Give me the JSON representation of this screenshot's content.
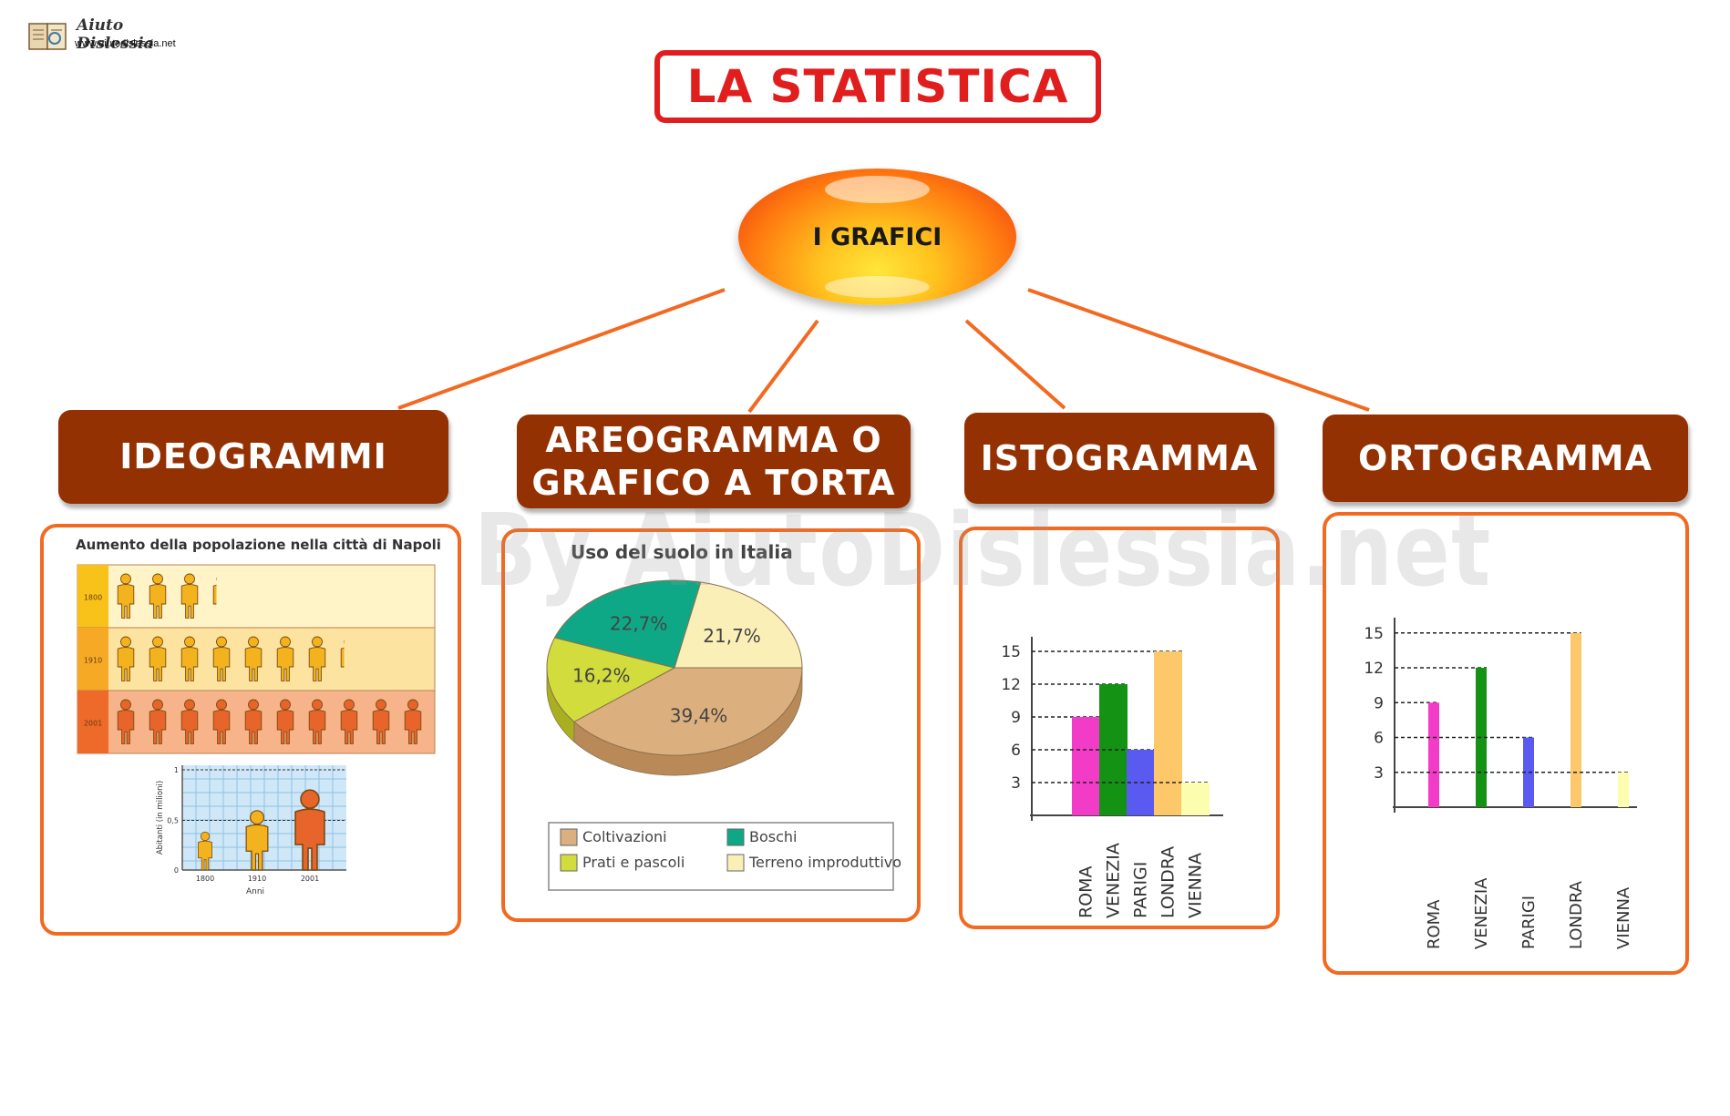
{
  "logo": {
    "name": "Aiuto Dislessia",
    "url": "www.aiutodislessia.net"
  },
  "title": "LA STATISTICA",
  "center": "I GRAFICI",
  "watermark": "By AiutoDislessia.net",
  "colors": {
    "title_red": "#e11e1e",
    "box_brown": "#943103",
    "connector_orange": "#f26a21"
  },
  "categories": [
    {
      "label": "IDEOGRAMMI"
    },
    {
      "label_line1": "AREOGRAMMA O",
      "label_line2": "GRAFICO A TORTA"
    },
    {
      "label": "ISTOGRAMMA"
    },
    {
      "label": "ORTOGRAMMA"
    }
  ],
  "ideogram": {
    "title": "Aumento della popolazione nella città di Napoli",
    "rows": [
      {
        "year": "1800",
        "icons": 3.25
      },
      {
        "year": "1910",
        "icons": 7.25
      },
      {
        "year": "2001",
        "icons": 10
      }
    ],
    "small_chart": {
      "ylabel": "Abitanti (in milioni)",
      "yticks": [
        "1",
        "0,5",
        "0"
      ],
      "categories": [
        "1800",
        "1910",
        "2001"
      ],
      "xlabel": "Anni"
    }
  },
  "chart_data": [
    {
      "type": "pie",
      "title": "Uso del suolo in Italia",
      "slices": [
        {
          "label": "Coltivazioni",
          "value": 39.4,
          "text": "39,4%",
          "color": "#dcaf7e"
        },
        {
          "label": "Prati e pascoli",
          "value": 16.2,
          "text": "16,2%",
          "color": "#d2dc3c"
        },
        {
          "label": "Boschi",
          "value": 22.7,
          "text": "22,7%",
          "color": "#0fa887"
        },
        {
          "label": "Terreno improduttivo",
          "value": 21.7,
          "text": "21,7%",
          "color": "#fbefb8"
        }
      ]
    },
    {
      "type": "bar",
      "variant": "histogram",
      "categories": [
        "ROMA",
        "VENEZIA",
        "PARIGI",
        "LONDRA",
        "VIENNA"
      ],
      "values": [
        9,
        12,
        6,
        15,
        3
      ],
      "colors": [
        "#f23bc6",
        "#149214",
        "#5a5af0",
        "#fcc86a",
        "#fdfdb0"
      ],
      "yticks": [
        3,
        6,
        9,
        12,
        15
      ],
      "ylim": [
        0,
        16
      ]
    },
    {
      "type": "bar",
      "variant": "orthogram",
      "categories": [
        "ROMA",
        "VENEZIA",
        "PARIGI",
        "LONDRA",
        "VIENNA"
      ],
      "values": [
        9,
        12,
        6,
        15,
        3
      ],
      "colors": [
        "#f23bc6",
        "#149214",
        "#5a5af0",
        "#fcc86a",
        "#fdfdb0"
      ],
      "yticks": [
        3,
        6,
        9,
        12,
        15
      ],
      "ylim": [
        0,
        16
      ]
    }
  ]
}
